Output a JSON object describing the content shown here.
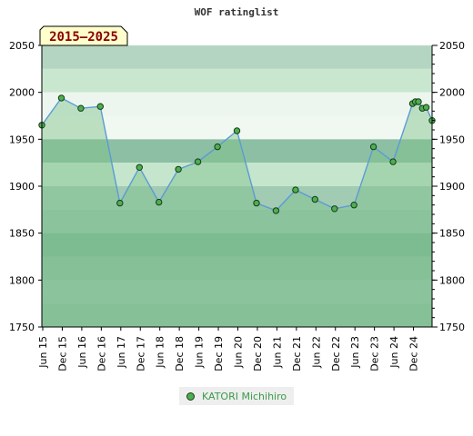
{
  "chart_data": {
    "type": "area",
    "title": "WOF ratinglist",
    "period_label": "2015–2025",
    "ylim": [
      1750,
      2050
    ],
    "yticks": [
      1750,
      1800,
      1850,
      1900,
      1950,
      2000,
      2050
    ],
    "x_tick_labels": [
      "Jun 15",
      "Dec 15",
      "Jun 16",
      "Dec 16",
      "Jun 17",
      "Dec 17",
      "Jun 18",
      "Dec 18",
      "Jun 19",
      "Dec 19",
      "Jun 20",
      "Dec 20",
      "Jun 21",
      "Dec 21",
      "Jun 22",
      "Dec 22",
      "Jun 23",
      "Dec 23",
      "Jun 24",
      "Dec 24"
    ],
    "x_range": [
      2015.45,
      2025.45
    ],
    "grid": true,
    "legend_position": "bottom",
    "series": [
      {
        "name": "KATORI Michihiro",
        "x": [
          2015.45,
          2015.95,
          2016.45,
          2016.95,
          2017.45,
          2017.95,
          2018.45,
          2018.95,
          2019.45,
          2019.95,
          2020.45,
          2020.95,
          2021.45,
          2021.95,
          2022.45,
          2022.95,
          2023.45,
          2023.95,
          2024.45,
          2024.95,
          2025.02,
          2025.1,
          2025.2,
          2025.3,
          2025.45
        ],
        "values": [
          1965,
          1994,
          1983,
          1985,
          1882,
          1920,
          1883,
          1918,
          1926,
          1942,
          1959,
          1882,
          1874,
          1896,
          1886,
          1876,
          1880,
          1942,
          1926,
          1988,
          1990,
          1990,
          1983,
          1984,
          1970
        ]
      }
    ]
  },
  "colors": {
    "line": "#5b9bd5",
    "marker_fill": "#4caf50",
    "marker_stroke": "#1a3a1a",
    "area_fill": "#7dc08a",
    "band_high": "#2e8b57",
    "band_mid": "#bfe3c7",
    "band_light": "#ecf6ee",
    "legend_text": "#3a9a4a",
    "period_bg": "#ffffcc"
  }
}
